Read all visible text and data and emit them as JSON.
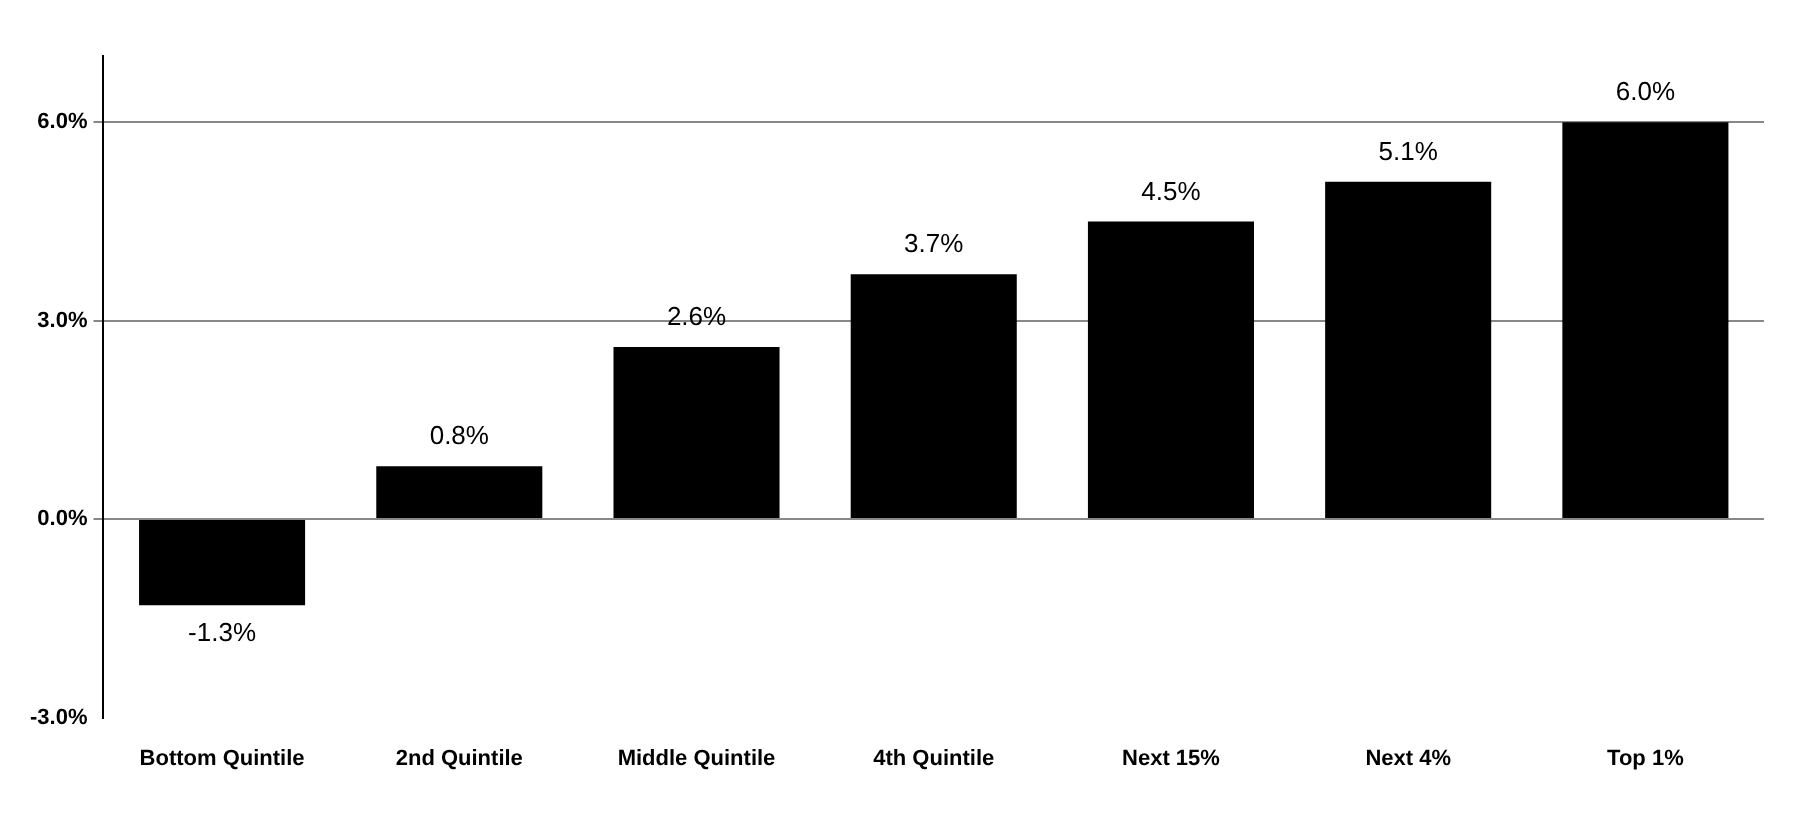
{
  "chart_data": {
    "type": "bar",
    "categories": [
      "Bottom Quintile",
      "2nd Quintile",
      "Middle Quintile",
      "4th Quintile",
      "Next 15%",
      "Next 4%",
      "Top 1%"
    ],
    "values": [
      -1.3,
      0.8,
      2.6,
      3.7,
      4.5,
      5.1,
      6.0
    ],
    "value_labels": [
      "-1.3%",
      "0.8%",
      "2.6%",
      "3.7%",
      "4.5%",
      "5.1%",
      "6.0%"
    ],
    "color": "#000000",
    "ylim": [
      -3,
      7
    ],
    "yticks": [
      {
        "value": -3,
        "label": "-3.0%"
      },
      {
        "value": 0,
        "label": "0.0%"
      },
      {
        "value": 3,
        "label": "3.0%"
      },
      {
        "value": 6,
        "label": "6.0%"
      }
    ],
    "grid": "y",
    "legend": false
  }
}
